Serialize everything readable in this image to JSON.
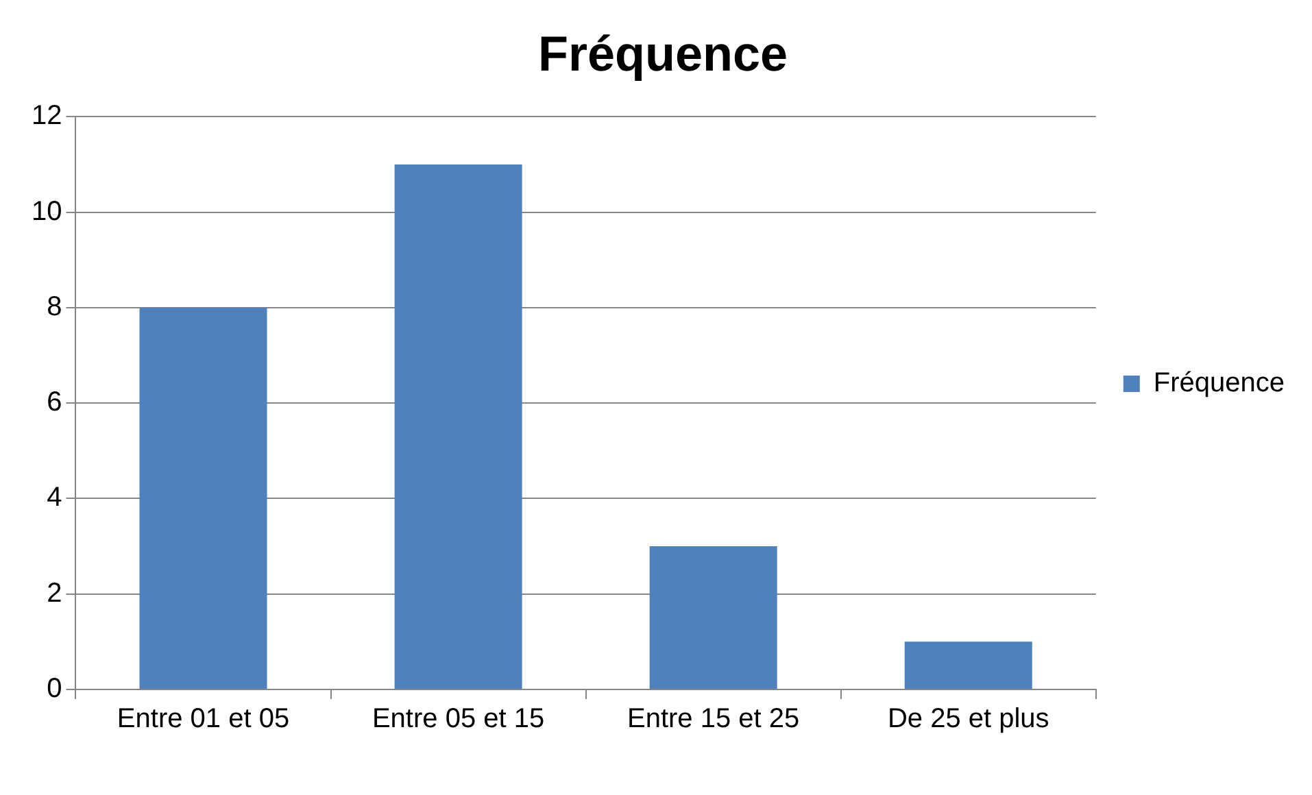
{
  "chart_data": {
    "type": "bar",
    "title": "Fréquence",
    "categories": [
      "Entre 01 et 05",
      "Entre 05 et 15",
      "Entre 15 et 25",
      "De 25 et plus"
    ],
    "series": [
      {
        "name": "Fréquence",
        "color": "#4f81bd",
        "values": [
          8,
          11,
          3,
          1
        ]
      }
    ],
    "ylim": [
      0,
      12
    ],
    "yticks": [
      0,
      2,
      4,
      6,
      8,
      10,
      12
    ],
    "grid": "y",
    "legend": "right"
  }
}
